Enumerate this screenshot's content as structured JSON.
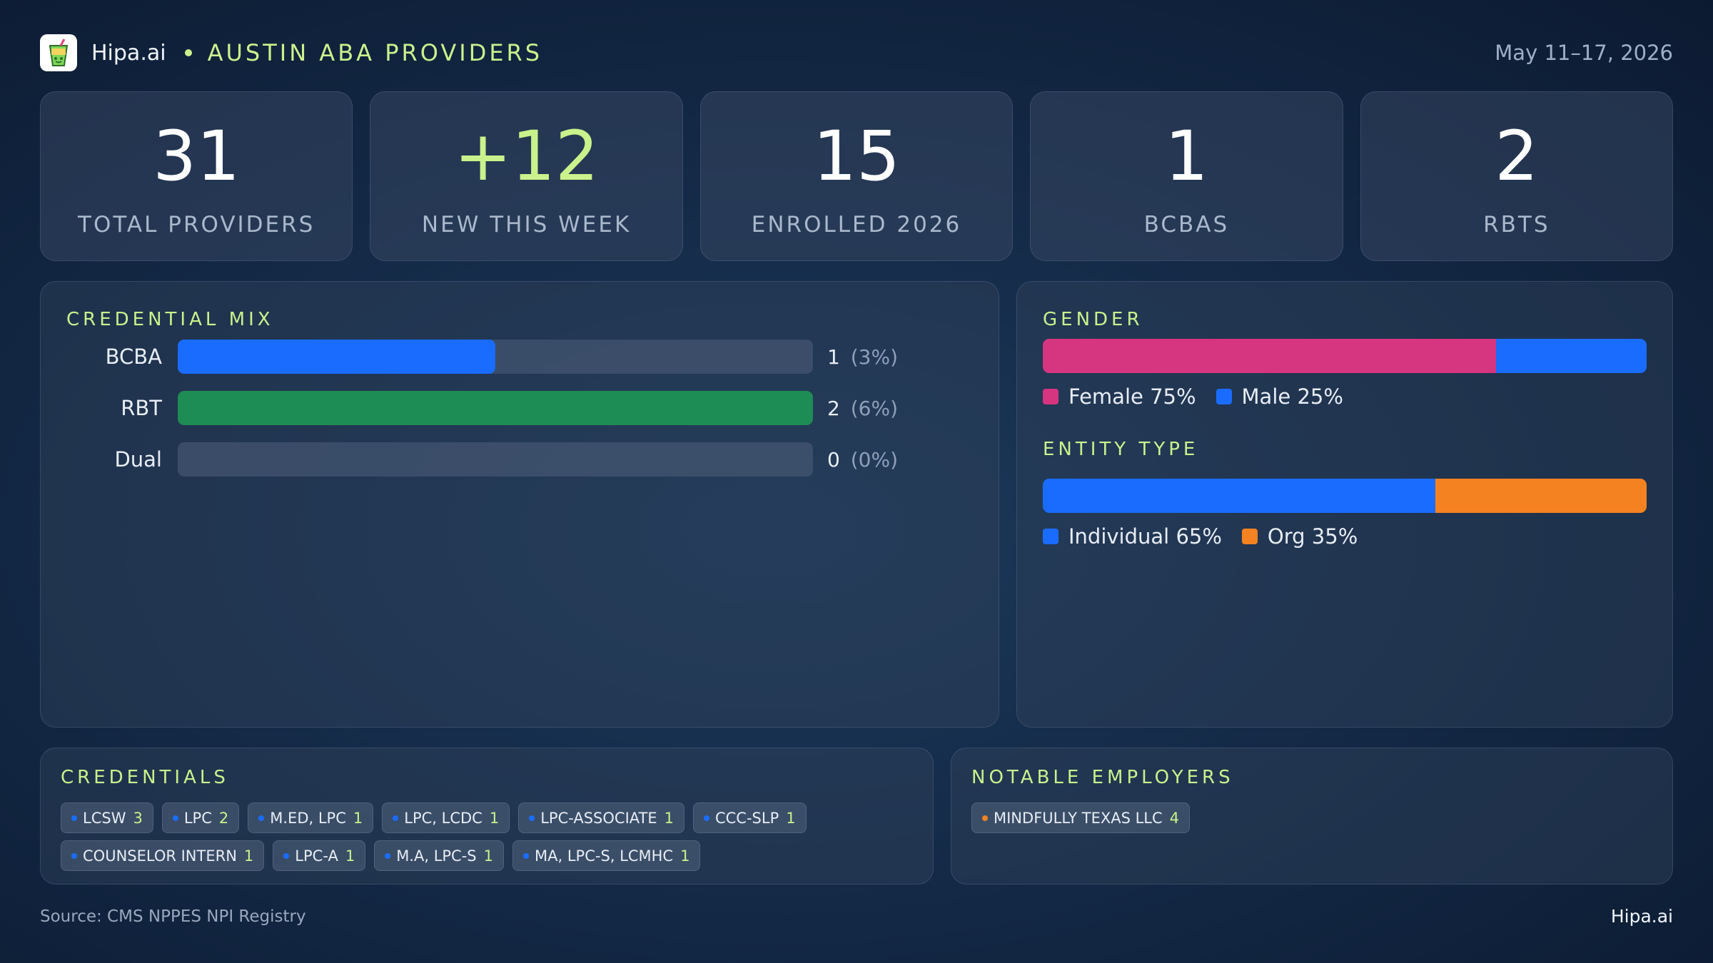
{
  "header": {
    "brand": "Hipa.ai",
    "region": "AUSTIN ABA PROVIDERS",
    "date_range": "May 11–17, 2026",
    "logo_icon": "drink-cup-icon"
  },
  "stats": [
    {
      "value": "31",
      "label": "TOTAL PROVIDERS"
    },
    {
      "value": "+12",
      "label": "NEW THIS WEEK"
    },
    {
      "value": "15",
      "label": "ENROLLED 2026"
    },
    {
      "value": "1",
      "label": "BCBAS"
    },
    {
      "value": "2",
      "label": "RBTS"
    }
  ],
  "credential_mix": {
    "title": "CREDENTIAL MIX",
    "rows": [
      {
        "label": "BCBA",
        "count": "1",
        "pct": "(3%)"
      },
      {
        "label": "RBT",
        "count": "2",
        "pct": "(6%)"
      },
      {
        "label": "Dual",
        "count": "0",
        "pct": "(0%)"
      }
    ]
  },
  "chart_data": [
    {
      "type": "bar",
      "title": "CREDENTIAL MIX",
      "categories": [
        "BCBA",
        "RBT",
        "Dual"
      ],
      "values": [
        1,
        2,
        0
      ],
      "percent_labels": [
        "3%",
        "6%",
        "0%"
      ],
      "relative_fill": [
        0.5,
        1.0,
        0.0
      ],
      "colors": [
        "#1a6cff",
        "#1e8c55",
        "#1a6cff"
      ],
      "orientation": "horizontal"
    },
    {
      "type": "bar",
      "title": "GENDER",
      "stacked": true,
      "series": [
        {
          "name": "Female",
          "values": [
            75
          ],
          "color": "#d6357f"
        },
        {
          "name": "Male",
          "values": [
            25
          ],
          "color": "#1a6cff"
        }
      ]
    },
    {
      "type": "bar",
      "title": "ENTITY TYPE",
      "stacked": true,
      "series": [
        {
          "name": "Individual",
          "values": [
            65
          ],
          "color": "#1a6cff"
        },
        {
          "name": "Org",
          "values": [
            35
          ],
          "color": "#f58220"
        }
      ]
    }
  ],
  "gender": {
    "title": "GENDER",
    "legend": [
      {
        "label": "Female 75%",
        "color": "#d6357f"
      },
      {
        "label": "Male 25%",
        "color": "#1a6cff"
      }
    ]
  },
  "entity": {
    "title": "ENTITY TYPE",
    "legend": [
      {
        "label": "Individual 65%",
        "color": "#1a6cff"
      },
      {
        "label": "Org 35%",
        "color": "#f58220"
      }
    ]
  },
  "credentials": {
    "title": "CREDENTIALS",
    "chips": [
      {
        "label": "LCSW",
        "count": "3"
      },
      {
        "label": "LPC",
        "count": "2"
      },
      {
        "label": "M.ED, LPC",
        "count": "1"
      },
      {
        "label": "LPC, LCDC",
        "count": "1"
      },
      {
        "label": "LPC-ASSOCIATE",
        "count": "1"
      },
      {
        "label": "CCC-SLP",
        "count": "1"
      },
      {
        "label": "COUNSELOR INTERN",
        "count": "1"
      },
      {
        "label": "LPC-A",
        "count": "1"
      },
      {
        "label": "M.A, LPC-S",
        "count": "1"
      },
      {
        "label": "MA, LPC-S, LCMHC",
        "count": "1"
      }
    ]
  },
  "employers": {
    "title": "NOTABLE EMPLOYERS",
    "chips": [
      {
        "label": "MINDFULLY TEXAS LLC",
        "count": "4"
      }
    ]
  },
  "footer": {
    "source": "Source: CMS NPPES NPI Registry",
    "brand": "Hipa.ai"
  },
  "colors": {
    "accent": "#c9f28c",
    "blue": "#1a6cff",
    "green": "#1e8c55",
    "pink": "#d6357f",
    "orange": "#f58220"
  }
}
